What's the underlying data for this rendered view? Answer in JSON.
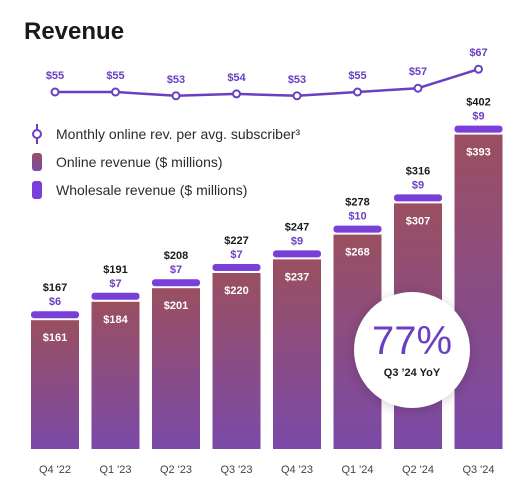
{
  "chart_data": {
    "type": "bar",
    "title": "Revenue",
    "categories": [
      "Q4 '22",
      "Q1 '23",
      "Q2 '23",
      "Q3 '23",
      "Q4 '23",
      "Q1 '24",
      "Q2 '24",
      "Q3 '24"
    ],
    "series": [
      {
        "name": "Online revenue ($ millions)",
        "values": [
          161,
          184,
          201,
          220,
          237,
          268,
          307,
          393
        ]
      },
      {
        "name": "Wholesale revenue ($ millions)",
        "values": [
          6,
          7,
          7,
          7,
          9,
          10,
          9,
          9
        ]
      },
      {
        "name": "Monthly online rev. per avg. subscriber³",
        "type": "line",
        "values": [
          55,
          55,
          53,
          54,
          53,
          55,
          57,
          67
        ]
      }
    ],
    "totals": [
      167,
      191,
      208,
      227,
      247,
      278,
      316,
      402
    ],
    "value_labels": {
      "online": [
        "$161",
        "$184",
        "$201",
        "$220",
        "$237",
        "$268",
        "$307",
        "$393"
      ],
      "wholesale": [
        "$6",
        "$7",
        "$7",
        "$7",
        "$9",
        "$10",
        "$9",
        "$9"
      ],
      "totals": [
        "$167",
        "$191",
        "$208",
        "$227",
        "$247",
        "$278",
        "$316",
        "$402"
      ],
      "line": [
        "$55",
        "$55",
        "$53",
        "$54",
        "$53",
        "$55",
        "$57",
        "$67"
      ]
    },
    "stacked": true,
    "grid": false,
    "legend_position": "left"
  },
  "legend": {
    "line_label": "Monthly online rev. per avg. subscriber³",
    "online_label": "Online revenue ($ millions)",
    "wholesale_label": "Wholesale revenue ($ millions)"
  },
  "callout": {
    "value": "77%",
    "label": "Q3 ’24 YoY"
  },
  "colors": {
    "line": "#6a3fc2",
    "wholesale": "#7a3fd8",
    "online_top": "#9a4f60",
    "online_bottom": "#7b4aa8",
    "label_purple": "#6a3fc2",
    "text_dark": "#1a1a1a"
  }
}
